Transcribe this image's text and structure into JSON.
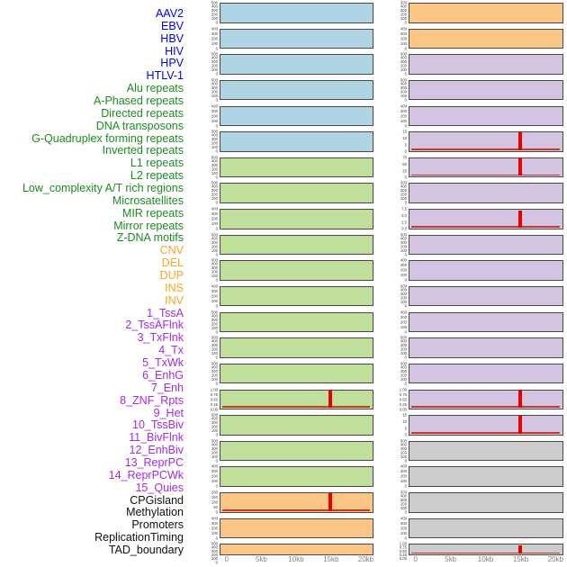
{
  "colors": {
    "label": {
      "virus": "#0000E8",
      "repeat": "#1E8B22",
      "sv": "#FCA41E",
      "chromhmm": "#A12BEB",
      "other": "#111111"
    },
    "panel": {
      "virus": "#AFD4E4",
      "repeat": "#C0DF9B",
      "sv": "#FBC685",
      "chromhmm": "#D3C4E1",
      "other": "#CDCDCD"
    },
    "spike": "#E80000",
    "baseline": "#C5382A",
    "axis_text": "#8A8177",
    "tick_text": "#3D3D3D",
    "panel_border": "#4A4A4A"
  },
  "chart_data": {
    "type": "area",
    "title": "",
    "layout": {
      "columns": 2,
      "rows_per_column": 22,
      "order": "column-major",
      "grid": false,
      "legend": false
    },
    "x": {
      "label": "",
      "ticks": [
        "0",
        "5kb",
        "10kb",
        "15kb",
        "20kb"
      ],
      "range_kb": [
        0,
        20
      ]
    },
    "tracks": [
      {
        "name": "AAV2",
        "group": "virus",
        "column": "left",
        "y_ticks": [
          "500",
          "400",
          "300",
          "200",
          "100",
          "0"
        ],
        "signal": null
      },
      {
        "name": "EBV",
        "group": "virus",
        "column": "left",
        "y_ticks": [
          "400",
          "300",
          "200",
          "100",
          "0"
        ],
        "signal": null
      },
      {
        "name": "HBV",
        "group": "virus",
        "column": "left",
        "y_ticks": [
          "500",
          "400",
          "300",
          "200",
          "100",
          "0"
        ],
        "signal": null
      },
      {
        "name": "HIV",
        "group": "virus",
        "column": "left",
        "y_ticks": [
          "500",
          "400",
          "300",
          "200",
          "100",
          "0"
        ],
        "signal": null
      },
      {
        "name": "HPV",
        "group": "virus",
        "column": "left",
        "y_ticks": [
          "400",
          "300",
          "200",
          "100",
          "0"
        ],
        "signal": null
      },
      {
        "name": "HTLV-1",
        "group": "virus",
        "column": "left",
        "y_ticks": [
          "500",
          "400",
          "300",
          "200",
          "100",
          "0"
        ],
        "signal": null
      },
      {
        "name": "Alu repeats",
        "group": "repeat",
        "column": "left",
        "y_ticks": [
          "500",
          "400",
          "300",
          "200",
          "100",
          "0"
        ],
        "signal": null
      },
      {
        "name": "A-Phased repeats",
        "group": "repeat",
        "column": "left",
        "y_ticks": [
          "500",
          "400",
          "300",
          "200",
          "100",
          "0"
        ],
        "signal": null
      },
      {
        "name": "Directed repeats",
        "group": "repeat",
        "column": "left",
        "y_ticks": [
          "400",
          "300",
          "200",
          "100",
          "0"
        ],
        "signal": null
      },
      {
        "name": "DNA transposons",
        "group": "repeat",
        "column": "left",
        "y_ticks": [
          "500",
          "400",
          "300",
          "200",
          "100",
          "0"
        ],
        "signal": null
      },
      {
        "name": "G-Quadruplex forming repeats",
        "group": "repeat",
        "column": "left",
        "y_ticks": [
          "500",
          "400",
          "300",
          "200",
          "100",
          "0"
        ],
        "signal": null
      },
      {
        "name": "Inverted repeats",
        "group": "repeat",
        "column": "left",
        "y_ticks": [
          "400",
          "300",
          "200",
          "100",
          "0"
        ],
        "signal": null
      },
      {
        "name": "L1 repeats",
        "group": "repeat",
        "column": "left",
        "y_ticks": [
          "500",
          "400",
          "300",
          "200",
          "100",
          "0"
        ],
        "signal": null
      },
      {
        "name": "L2 repeats",
        "group": "repeat",
        "column": "left",
        "y_ticks": [
          "500",
          "400",
          "300",
          "200",
          "100",
          "0"
        ],
        "signal": null
      },
      {
        "name": "Low_complexity A/T rich regions",
        "group": "repeat",
        "column": "left",
        "y_ticks": [
          "500",
          "400",
          "300",
          "200",
          "100",
          "0"
        ],
        "signal": null
      },
      {
        "name": "Microsatellites",
        "group": "repeat",
        "column": "left",
        "y_ticks": [
          "1.00",
          "0.75",
          "0.50",
          "0.25",
          "0.00"
        ],
        "signal": {
          "shape": "spike",
          "x_kb": 15,
          "peak": 1.0,
          "baseline_y": 0,
          "render_h": 0.97
        }
      },
      {
        "name": "MIR repeats",
        "group": "repeat",
        "column": "left",
        "y_ticks": [
          "500",
          "400",
          "300",
          "200",
          "100",
          "0"
        ],
        "signal": null
      },
      {
        "name": "Mirror repeats",
        "group": "repeat",
        "column": "left",
        "y_ticks": [
          "500",
          "400",
          "300",
          "200",
          "100",
          "0"
        ],
        "signal": null
      },
      {
        "name": "Z-DNA motifs",
        "group": "repeat",
        "column": "left",
        "y_ticks": [
          "400",
          "300",
          "200",
          "100",
          "0"
        ],
        "signal": null
      },
      {
        "name": "CNV",
        "group": "sv",
        "column": "left",
        "y_ticks": [
          "200",
          "150",
          "100",
          "50",
          "0"
        ],
        "signal": {
          "shape": "spike",
          "x_kb": 15,
          "peak": 210,
          "baseline_y": 0,
          "render_h": 0.97
        }
      },
      {
        "name": "DEL",
        "group": "sv",
        "column": "left",
        "y_ticks": [
          "400",
          "300",
          "200",
          "100",
          "0"
        ],
        "signal": null
      },
      {
        "name": "DUP",
        "group": "sv",
        "column": "left",
        "y_ticks": [
          "500",
          "400",
          "300",
          "200",
          "100",
          "0"
        ],
        "signal": null
      },
      {
        "name": "INS",
        "group": "sv",
        "column": "right",
        "y_ticks": [
          "500",
          "400",
          "300",
          "200",
          "100",
          "0"
        ],
        "signal": null
      },
      {
        "name": "INV",
        "group": "sv",
        "column": "right",
        "y_ticks": [
          "400",
          "300",
          "200",
          "100",
          "0"
        ],
        "signal": null
      },
      {
        "name": "1_TssA",
        "group": "chromhmm",
        "column": "right",
        "y_ticks": [
          "500",
          "400",
          "300",
          "200",
          "100",
          "0"
        ],
        "signal": null
      },
      {
        "name": "2_TssAFlnk",
        "group": "chromhmm",
        "column": "right",
        "y_ticks": [
          "500",
          "400",
          "300",
          "200",
          "100",
          "0"
        ],
        "signal": null
      },
      {
        "name": "3_TxFlnk",
        "group": "chromhmm",
        "column": "right",
        "y_ticks": [
          "400",
          "300",
          "200",
          "100",
          "0"
        ],
        "signal": null
      },
      {
        "name": "4_Tx",
        "group": "chromhmm",
        "column": "right",
        "y_ticks": [
          "15",
          "10",
          "5",
          "0"
        ],
        "signal": {
          "shape": "spike",
          "x_kb": 15,
          "peak": 17,
          "baseline_y": 0,
          "render_h": 0.95
        }
      },
      {
        "name": "5_TxWk",
        "group": "chromhmm",
        "column": "right",
        "y_ticks": [
          "75",
          "50",
          "25",
          "0"
        ],
        "signal": {
          "shape": "spike",
          "x_kb": 15,
          "peak": 80,
          "baseline_y": 0,
          "render_h": 0.97
        }
      },
      {
        "name": "6_EnhG",
        "group": "chromhmm",
        "column": "right",
        "y_ticks": [
          "500",
          "400",
          "300",
          "200",
          "100",
          "0"
        ],
        "signal": null
      },
      {
        "name": "7_Enh",
        "group": "chromhmm",
        "column": "right",
        "y_ticks": [
          "7.5",
          "5.0",
          "2.5",
          "0.0"
        ],
        "signal": {
          "shape": "spike",
          "x_kb": 15,
          "peak": 8,
          "baseline_y": 0,
          "render_h": 0.93
        }
      },
      {
        "name": "8_ZNF_Rpts",
        "group": "chromhmm",
        "column": "right",
        "y_ticks": [
          "500",
          "400",
          "300",
          "200",
          "100",
          "0"
        ],
        "signal": null
      },
      {
        "name": "9_Het",
        "group": "chromhmm",
        "column": "right",
        "y_ticks": [
          "400",
          "300",
          "200",
          "100",
          "0"
        ],
        "signal": null
      },
      {
        "name": "10_TssBiv",
        "group": "chromhmm",
        "column": "right",
        "y_ticks": [
          "500",
          "400",
          "300",
          "200",
          "100",
          "0"
        ],
        "signal": null
      },
      {
        "name": "11_BivFlnk",
        "group": "chromhmm",
        "column": "right",
        "y_ticks": [
          "400",
          "300",
          "200",
          "100",
          "0"
        ],
        "signal": null
      },
      {
        "name": "12_EnhBiv",
        "group": "chromhmm",
        "column": "right",
        "y_ticks": [
          "500",
          "400",
          "300",
          "200",
          "100",
          "0"
        ],
        "signal": null
      },
      {
        "name": "13_ReprPC",
        "group": "chromhmm",
        "column": "right",
        "y_ticks": [
          "500",
          "400",
          "300",
          "200",
          "100",
          "0"
        ],
        "signal": null
      },
      {
        "name": "14_ReprPCWk",
        "group": "chromhmm",
        "column": "right",
        "y_ticks": [
          "1.00",
          "0.75",
          "0.50",
          "0.25",
          "0.00"
        ],
        "signal": {
          "shape": "spike",
          "x_kb": 15,
          "peak": 1.0,
          "baseline_y": 0,
          "render_h": 0.97
        }
      },
      {
        "name": "15_Quies",
        "group": "chromhmm",
        "column": "right",
        "y_ticks": [
          "15",
          "10",
          "5",
          "0"
        ],
        "signal": {
          "shape": "spike",
          "x_kb": 15,
          "peak": 16,
          "baseline_y": 0,
          "render_h": 0.97
        }
      },
      {
        "name": "CPGisland",
        "group": "other",
        "column": "right",
        "y_ticks": [
          "500",
          "400",
          "300",
          "200",
          "100",
          "0"
        ],
        "signal": null
      },
      {
        "name": "Methylation",
        "group": "other",
        "column": "right",
        "y_ticks": [
          "400",
          "300",
          "200",
          "100",
          "0"
        ],
        "signal": null
      },
      {
        "name": "Promoters",
        "group": "other",
        "column": "right",
        "y_ticks": [
          "500",
          "400",
          "300",
          "200",
          "100",
          "0"
        ],
        "signal": null
      },
      {
        "name": "ReplicationTiming",
        "group": "other",
        "column": "right",
        "y_ticks": [
          "400",
          "300",
          "200",
          "100",
          "0"
        ],
        "signal": null
      },
      {
        "name": "TAD_boundary",
        "group": "other",
        "column": "right",
        "y_ticks": [
          "1.00",
          "0.75",
          "0.50",
          "0.25",
          "0.00"
        ],
        "signal": {
          "shape": "spike",
          "x_kb": 15,
          "peak": 1.0,
          "baseline_y": 0,
          "render_h": 0.85
        }
      }
    ]
  }
}
